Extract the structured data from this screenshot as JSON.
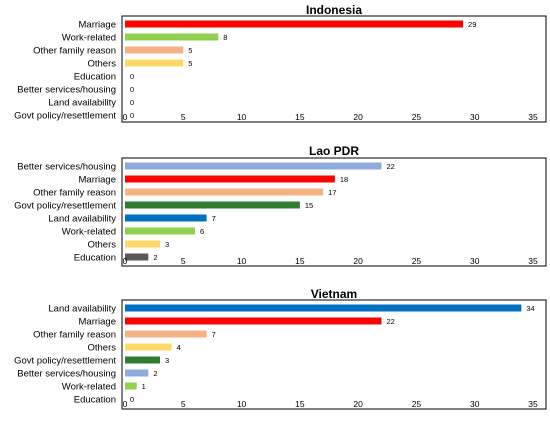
{
  "chart_data": [
    {
      "type": "bar",
      "orientation": "horizontal",
      "title": "Indonesia",
      "xlim": [
        0,
        35
      ],
      "xticks": [
        0,
        5,
        10,
        15,
        20,
        25,
        30,
        35
      ],
      "grid": false,
      "categories": [
        "Marriage",
        "Work-related",
        "Other family reason",
        "Others",
        "Education",
        "Better services/housing",
        "Land availability",
        "Govt policy/resettlement"
      ],
      "values": [
        29,
        8,
        5,
        5,
        0,
        0,
        0,
        0
      ],
      "colors": [
        "#ff0000",
        "#92d050",
        "#f4b183",
        "#ffd966",
        "#ffd966",
        "#8faadc",
        "#0070c0",
        "#2e7d32"
      ]
    },
    {
      "type": "bar",
      "orientation": "horizontal",
      "title": "Lao PDR",
      "xlim": [
        0,
        35
      ],
      "xticks": [
        0,
        5,
        10,
        15,
        20,
        25,
        30,
        35
      ],
      "grid": false,
      "categories": [
        "Better services/housing",
        "Marriage",
        "Other family reason",
        "Govt policy/resettlement",
        "Land availability",
        "Work-related",
        "Others",
        "Education"
      ],
      "values": [
        22,
        18,
        17,
        15,
        7,
        6,
        3,
        2
      ],
      "colors": [
        "#8faadc",
        "#ff0000",
        "#f4b183",
        "#2e7d32",
        "#0070c0",
        "#92d050",
        "#ffd966",
        "#595959"
      ]
    },
    {
      "type": "bar",
      "orientation": "horizontal",
      "title": "Vietnam",
      "xlim": [
        0,
        35
      ],
      "xticks": [
        0,
        5,
        10,
        15,
        20,
        25,
        30,
        35
      ],
      "grid": false,
      "categories": [
        "Land availability",
        "Marriage",
        "Other family reason",
        "Others",
        "Govt policy/resettlement",
        "Better services/housing",
        "Work-related",
        "Education"
      ],
      "values": [
        34,
        22,
        7,
        4,
        3,
        2,
        1,
        0
      ],
      "colors": [
        "#0070c0",
        "#ff0000",
        "#f4b183",
        "#ffd966",
        "#2e7d32",
        "#8faadc",
        "#92d050",
        "#595959"
      ]
    }
  ]
}
